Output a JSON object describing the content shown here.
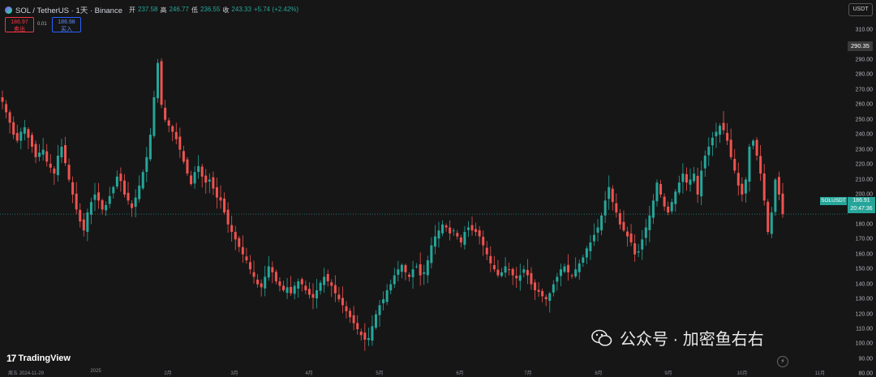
{
  "header": {
    "title": "SOL / TetherUS · 1天 · Binance",
    "ohlc": [
      {
        "label": "开",
        "value": "237.58"
      },
      {
        "label": "高",
        "value": "246.77"
      },
      {
        "label": "低",
        "value": "236.55"
      },
      {
        "label": "收",
        "value": "243.33"
      },
      {
        "label": "",
        "value": "+5.74 (+2.42%)"
      }
    ]
  },
  "trade": {
    "sell_price": "186.97",
    "sell_label": "卖出",
    "spread": "0.01",
    "buy_price": "186.98",
    "buy_label": "买入"
  },
  "price_axis": {
    "currency": "USDT",
    "ticks": [
      "310.00",
      "300.00",
      "290.00",
      "280.00",
      "270.00",
      "260.00",
      "250.00",
      "240.00",
      "230.00",
      "220.00",
      "210.00",
      "200.00",
      "190.00",
      "180.00",
      "170.00",
      "160.00",
      "150.00",
      "140.00",
      "130.00",
      "120.00",
      "110.00",
      "100.00",
      "90.00",
      "80.00"
    ],
    "high_label": "290.35",
    "current_price": "186.91",
    "countdown": "20:47:36",
    "symbol_tag": "SOLUSDT"
  },
  "time_axis": {
    "ticks": [
      "周五 2024-11-29",
      "2025",
      "2月",
      "3月",
      "4月",
      "5月",
      "6月",
      "7月",
      "8月",
      "9月",
      "10月",
      "11月"
    ]
  },
  "logo": {
    "mark": "17",
    "text": "TradingView"
  },
  "watermark": {
    "text": "公众号 · 加密鱼右右"
  },
  "chart_data": {
    "type": "candlestick",
    "symbol": "SOL / TetherUS",
    "interval": "1天",
    "exchange": "Binance",
    "ylim": [
      80,
      310
    ],
    "current_price": 186.91,
    "colors": {
      "up": "#26a69a",
      "down": "#ef5350"
    },
    "closes": [
      262,
      255,
      248,
      240,
      236,
      242,
      245,
      238,
      232,
      225,
      228,
      230,
      222,
      218,
      214,
      226,
      232,
      221,
      210,
      200,
      190,
      182,
      176,
      188,
      195,
      200,
      196,
      190,
      193,
      199,
      205,
      212,
      209,
      200,
      196,
      191,
      198,
      206,
      215,
      225,
      240,
      265,
      288,
      260,
      250,
      246,
      242,
      237,
      230,
      222,
      214,
      207,
      215,
      219,
      212,
      208,
      210,
      204,
      198,
      196,
      188,
      180,
      175,
      170,
      165,
      160,
      156,
      150,
      145,
      140,
      138,
      145,
      152,
      148,
      142,
      139,
      136,
      138,
      134,
      139,
      142,
      140,
      136,
      133,
      131,
      136,
      141,
      145,
      142,
      139,
      134,
      130,
      126,
      122,
      118,
      114,
      110,
      106,
      103,
      104,
      112,
      120,
      126,
      130,
      136,
      140,
      146,
      150,
      153,
      148,
      145,
      150,
      152,
      146,
      148,
      156,
      166,
      172,
      176,
      180,
      178,
      174,
      176,
      172,
      168,
      175,
      178,
      176,
      175,
      172,
      166,
      160,
      154,
      150,
      146,
      148,
      152,
      150,
      146,
      144,
      146,
      150,
      146,
      140,
      136,
      135,
      132,
      130,
      134,
      140,
      145,
      150,
      152,
      148,
      146,
      150,
      154,
      158,
      164,
      168,
      173,
      178,
      186,
      196,
      205,
      195,
      188,
      180,
      176,
      172,
      168,
      160,
      162,
      170,
      178,
      186,
      196,
      208,
      200,
      192,
      188,
      195,
      202,
      208,
      214,
      208,
      210,
      214,
      200,
      216,
      226,
      232,
      238,
      242,
      246,
      243,
      236,
      225,
      216,
      206,
      200,
      210,
      232,
      236,
      226,
      214,
      196,
      175,
      188,
      210,
      200,
      187
    ],
    "highs_lows_note": "wicks extend a few units beyond open/close"
  }
}
